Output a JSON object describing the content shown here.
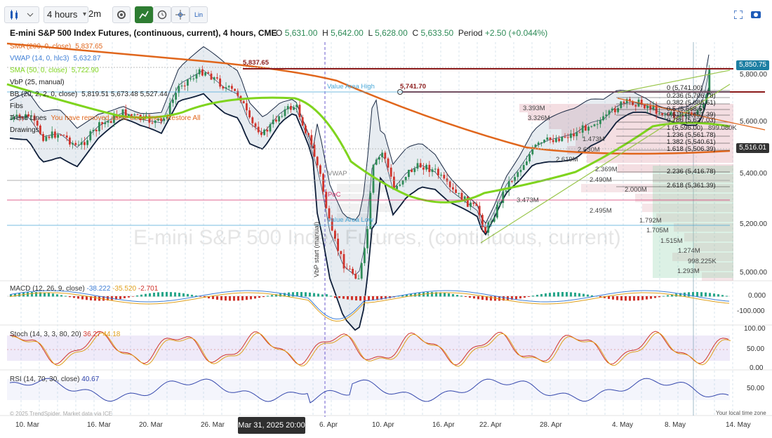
{
  "toolbar": {
    "timeframe": "4 hours",
    "interval": "2m",
    "lin_label": "Lin"
  },
  "chart": {
    "title": "E-mini S&P 500 Index Futures, (continuous, current), 4 hours, CME",
    "ohlc": {
      "o_label": "O",
      "o": "5,631.00",
      "h_label": "H",
      "h": "5,642.00",
      "l_label": "L",
      "l": "5,628.00",
      "c_label": "C",
      "c": "5,633.50",
      "period_label": "Period",
      "period": "+2.50 (+0.044%)"
    },
    "watermark": "E-mini S&P 500 Index Futures, (continuous, current)"
  },
  "legend": [
    {
      "label": "SMA (200, 0, close)",
      "value": "5,837.65",
      "color": "#e0661c"
    },
    {
      "label": "VWAP (14, 0, hlc3)",
      "value": "5,632.87",
      "color": "#3f7fd6"
    },
    {
      "label": "SMA (50, 0, close)",
      "value": "5,722.90",
      "color": "#7fd41e"
    },
    {
      "label": "VbP (25, manual)",
      "value": "",
      "color": "#222222"
    },
    {
      "label": "BB (20, 2, 2, 0, close)",
      "value": "5,819.51  5,673.48  5,527.44",
      "color": "#222222"
    },
    {
      "label": "Fibs",
      "value": "",
      "color": "#222222"
    },
    {
      "label": "Trend Lines",
      "value": "You have removed some trend lines. Restore All",
      "color": "#222222",
      "value_color": "#e0661c"
    },
    {
      "label": "Drawings",
      "value": "",
      "color": "#222222"
    }
  ],
  "price_axis": [
    "5,800.00",
    "5,600.00",
    "5,400.00",
    "5,200.00",
    "5,000.00"
  ],
  "price_tags": {
    "last": {
      "value": "5,850.75",
      "color": "#1d7fa3"
    },
    "bb": {
      "value": "5,516.01",
      "color": "#333333"
    }
  },
  "chart_labels": {
    "sma200_mark": "5,837.65",
    "resistance": "5,741.70",
    "value_area_high": "Value Area High",
    "vwap": "VWAP",
    "poc": "PoC",
    "value_area_low": "Value Area Low",
    "vbp_start": "VbP start (manual)"
  },
  "fibs": [
    {
      "label": "0 (5,741.00)"
    },
    {
      "label": "0.236 (5,706.78)"
    },
    {
      "label": "0.382 (5,685.61)"
    },
    {
      "label": "0.5 (5,668.5)"
    },
    {
      "label": "0.618 (5,651.39)"
    },
    {
      "label": "0.786 (5,627.03)"
    },
    {
      "label": "1 (5,596.00)"
    },
    {
      "label": "1.236 (5,561.78)"
    },
    {
      "label": "1.382 (5,540.61)"
    },
    {
      "label": "1.618 (5,506.39)"
    },
    {
      "label": "2.236 (5,416.78)"
    },
    {
      "label": "2.618 (5,361.39)"
    }
  ],
  "volume_labels": [
    "3.393M",
    "3.326M",
    "1.473M",
    "2.630M",
    "2.619M",
    "2.369M",
    "2.490M",
    "2.000M",
    "3.473M",
    "2.495M",
    "1.792M",
    "1.705M",
    "1.515M",
    "1.274M",
    "998.225K",
    "1.293M",
    "899.080K"
  ],
  "macd": {
    "label": "MACD (12, 26, 9, close)",
    "v1": "-38.222",
    "v2": "-35.520",
    "v3": "-2.701",
    "axis": [
      "0.000",
      "-100.000"
    ]
  },
  "stoch": {
    "label": "Stoch (14, 3, 3, 80, 20)",
    "v1": "36.27",
    "v2": "44.18",
    "axis": [
      "100.00",
      "50.00",
      "0.00"
    ]
  },
  "rsi": {
    "label": "RSI (14, 70, 30, close)",
    "v1": "40.67",
    "axis": [
      "50.00"
    ]
  },
  "x_axis": [
    "10. Mar",
    "16. Mar",
    "20. Mar",
    "26. Mar",
    "6. Apr",
    "10. Apr",
    "16. Apr",
    "22. Apr",
    "28. Apr",
    "4. May",
    "8. May",
    "14. May"
  ],
  "crosshair_date": "Mar 31, 2025 20:00",
  "footer": {
    "copyright": "© 2025 TrendSpider. Market data via ICE",
    "timezone": "Your local time zone"
  }
}
